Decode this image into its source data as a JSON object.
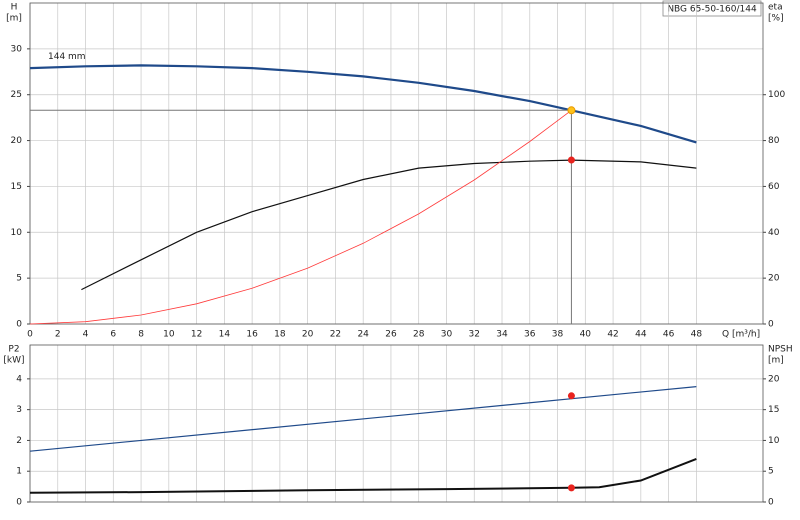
{
  "chart_data": [
    {
      "type": "line",
      "title": "NBG 65-50-160/144",
      "annotation": "144 mm",
      "x_label": "Q [m³/h]",
      "y_label": "H",
      "y_unit": "[m]",
      "y2_label": "eta",
      "y2_unit": "[%]",
      "xlim": [
        0,
        52.8
      ],
      "xticks": [
        0,
        2,
        4,
        6,
        8,
        10,
        12,
        14,
        16,
        18,
        20,
        22,
        24,
        26,
        28,
        30,
        32,
        34,
        36,
        38,
        40,
        42,
        44,
        46,
        48
      ],
      "ylim": [
        0,
        35
      ],
      "yticks": [
        0,
        5,
        10,
        15,
        20,
        25,
        30
      ],
      "y2lim": [
        0,
        140
      ],
      "y2ticks": [
        0,
        20,
        40,
        60,
        80,
        100
      ],
      "grid": true,
      "series": [
        {
          "color": "#1f4a8a",
          "width": 2.2,
          "x": [
            0,
            4,
            8,
            12,
            16,
            20,
            24,
            28,
            32,
            36,
            39,
            44,
            48
          ],
          "values": [
            27.9,
            28.1,
            28.2,
            28.1,
            27.9,
            27.5,
            27.0,
            26.3,
            25.4,
            24.3,
            23.3,
            21.6,
            19.8
          ]
        },
        {
          "color": "#111111",
          "width": 1.2,
          "axis": "y2",
          "x": [
            3.7,
            8,
            12,
            16,
            20,
            24,
            28,
            32,
            36,
            39,
            44,
            48
          ],
          "values": [
            15,
            28,
            40,
            49,
            56,
            63,
            68,
            70,
            71,
            71.5,
            70.7,
            68
          ]
        },
        {
          "color": "#ff3b3b",
          "width": 0.8,
          "x": [
            0,
            4,
            8,
            12,
            16,
            20,
            24,
            28,
            32,
            36,
            39
          ],
          "values": [
            0,
            0.25,
            0.98,
            2.2,
            3.9,
            6.1,
            8.8,
            12.0,
            15.7,
            19.9,
            23.3
          ]
        },
        {
          "kind": "point",
          "crosshair": true,
          "color": "#ffc21a",
          "x": [
            39
          ],
          "values": [
            23.3
          ]
        },
        {
          "kind": "point",
          "axis": "y2",
          "color": "#e8231e",
          "x": [
            39
          ],
          "values": [
            71.5
          ]
        }
      ]
    },
    {
      "type": "line",
      "y_label": "P2",
      "y_unit": "[kW]",
      "y2_label": "NPSH",
      "y2_unit": "[m]",
      "xlim": [
        0,
        52.8
      ],
      "ylim": [
        0,
        5.1
      ],
      "yticks": [
        0,
        1,
        2,
        3,
        4
      ],
      "y2lim": [
        0,
        25.5
      ],
      "y2ticks": [
        0,
        5,
        10,
        15,
        20
      ],
      "grid": true,
      "series": [
        {
          "color": "#1f4a8a",
          "width": 1.2,
          "x": [
            0,
            48
          ],
          "values": [
            1.65,
            3.75
          ]
        },
        {
          "color": "#111111",
          "width": 2,
          "axis": "y2",
          "x": [
            0,
            8,
            20,
            30,
            39,
            41,
            44,
            48
          ],
          "values": [
            1.5,
            1.6,
            1.9,
            2.1,
            2.3,
            2.4,
            3.5,
            7.0
          ]
        },
        {
          "kind": "point",
          "color": "#e8231e",
          "x": [
            39
          ],
          "values": [
            3.45
          ]
        },
        {
          "kind": "point",
          "axis": "y2",
          "color": "#e8231e",
          "x": [
            39
          ],
          "values": [
            2.3
          ]
        }
      ]
    }
  ]
}
